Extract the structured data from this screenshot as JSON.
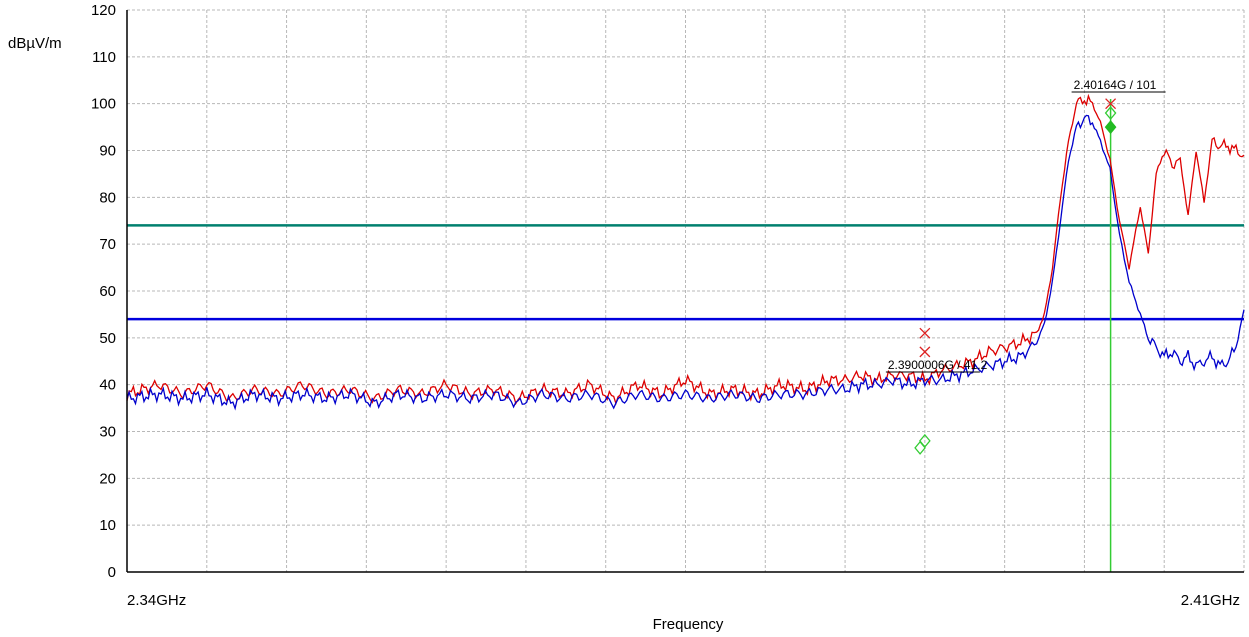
{
  "chart_data": {
    "type": "line",
    "xlabel": "Frequency",
    "ylabel": "dBµV/m",
    "xlim": [
      2.34,
      2.41
    ],
    "ylim": [
      0,
      120
    ],
    "x_unit": "GHz",
    "x_tick_labels": [
      "2.34GHz",
      "2.41GHz"
    ],
    "y_ticks": [
      0,
      10,
      20,
      30,
      40,
      50,
      60,
      70,
      80,
      90,
      100,
      110,
      120
    ],
    "grid": true,
    "limit_lines": [
      {
        "value": 74,
        "color": "#00806f"
      },
      {
        "value": 54,
        "color": "#0000dd"
      }
    ],
    "series": [
      {
        "color": "#dd0000",
        "x": [
          2.34,
          2.342,
          2.3435,
          2.345,
          2.3465,
          2.348,
          2.3495,
          2.351,
          2.3525,
          2.354,
          2.3555,
          2.357,
          2.3585,
          2.36,
          2.3615,
          2.363,
          2.3645,
          2.366,
          2.3675,
          2.369,
          2.3705,
          2.372,
          2.3735,
          2.375,
          2.3765,
          2.378,
          2.3795,
          2.381,
          2.3825,
          2.384,
          2.385,
          2.386,
          2.387,
          2.388,
          2.389,
          2.39,
          2.391,
          2.392,
          2.393,
          2.394,
          2.395,
          2.396,
          2.397,
          2.3975,
          2.398,
          2.3985,
          2.399,
          2.3995,
          2.4,
          2.4005,
          2.401,
          2.4016,
          2.4022,
          2.4028,
          2.4035,
          2.404,
          2.4045,
          2.405,
          2.4055,
          2.406,
          2.4065,
          2.407,
          2.4075,
          2.408,
          2.4085,
          2.409,
          2.4095,
          2.41
        ],
        "y": [
          38,
          40,
          38,
          40,
          37,
          39,
          38,
          40,
          38,
          39,
          37,
          39,
          38,
          40,
          38,
          39,
          37,
          39,
          38,
          40,
          37,
          40,
          38,
          41,
          38,
          39,
          38,
          40,
          39,
          41,
          41,
          42,
          41,
          42,
          42,
          41,
          43,
          44,
          45,
          47,
          48,
          49,
          51,
          55,
          65,
          80,
          92,
          100,
          101,
          100,
          96,
          88,
          75,
          65,
          78,
          68,
          85,
          90,
          87,
          88,
          76,
          90,
          79,
          92,
          91,
          91,
          90,
          89
        ]
      },
      {
        "color": "#0000cc",
        "x": [
          2.34,
          2.342,
          2.3435,
          2.345,
          2.3465,
          2.348,
          2.3495,
          2.351,
          2.3525,
          2.354,
          2.3555,
          2.357,
          2.3585,
          2.36,
          2.3615,
          2.363,
          2.3645,
          2.366,
          2.3675,
          2.369,
          2.3705,
          2.372,
          2.3735,
          2.375,
          2.3765,
          2.378,
          2.3795,
          2.381,
          2.3825,
          2.384,
          2.385,
          2.386,
          2.387,
          2.388,
          2.389,
          2.39,
          2.391,
          2.392,
          2.393,
          2.394,
          2.395,
          2.396,
          2.397,
          2.3975,
          2.398,
          2.3985,
          2.399,
          2.3995,
          2.4,
          2.4005,
          2.401,
          2.4016,
          2.4022,
          2.4028,
          2.4035,
          2.404,
          2.4045,
          2.405,
          2.4055,
          2.406,
          2.4065,
          2.407,
          2.4075,
          2.408,
          2.4085,
          2.409,
          2.4095,
          2.41
        ],
        "y": [
          37,
          38,
          37,
          38,
          36,
          38,
          37,
          38,
          37,
          38,
          36,
          38,
          37,
          38,
          37,
          38,
          36,
          38,
          37,
          38,
          36,
          38,
          37,
          38,
          37,
          38,
          37,
          38,
          38,
          39,
          39,
          40,
          40,
          41,
          40,
          41,
          41,
          42,
          43,
          44,
          45,
          46,
          49,
          53,
          62,
          75,
          88,
          95,
          97,
          96,
          92,
          86,
          72,
          62,
          55,
          50,
          48,
          46,
          47,
          45,
          46,
          44,
          45,
          46,
          44,
          45,
          48,
          56
        ]
      }
    ],
    "markers": [
      {
        "label": "2.40164G / 101",
        "x": 2.40164,
        "y": 101
      },
      {
        "label": "2.3900006G / 41.2",
        "x": 2.3900006,
        "y": 41.2
      }
    ],
    "marker_line": {
      "x": 2.40164,
      "color": "#33cc33"
    },
    "symbols": [
      {
        "shape": "x",
        "x": 2.39,
        "y": 51,
        "color": "#dd2222"
      },
      {
        "shape": "x",
        "x": 2.39,
        "y": 47,
        "color": "#dd2222"
      },
      {
        "shape": "diamond",
        "x": 2.39,
        "y": 28,
        "color": "#33cc33"
      },
      {
        "shape": "diamond",
        "x": 2.3897,
        "y": 26.5,
        "color": "#33cc33"
      },
      {
        "shape": "x",
        "x": 2.40164,
        "y": 100,
        "color": "#dd2222"
      },
      {
        "shape": "diamond",
        "x": 2.40164,
        "y": 98,
        "color": "#33cc33"
      },
      {
        "shape": "diamond-filled",
        "x": 2.40164,
        "y": 95,
        "color": "#22bb22"
      }
    ]
  }
}
